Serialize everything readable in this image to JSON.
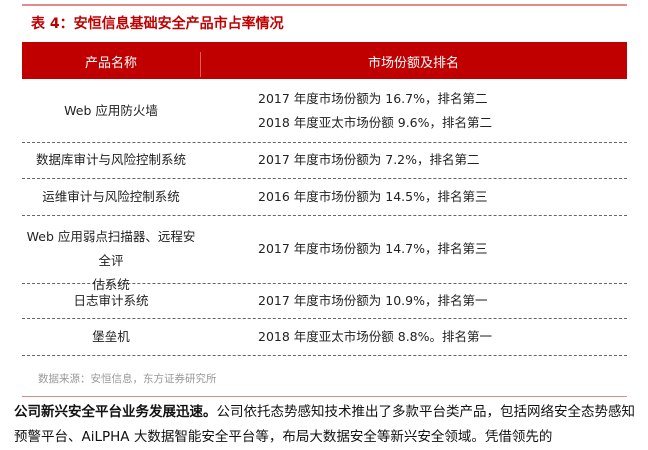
{
  "title": "表 4：安恒信息基础安全产品市占率情况",
  "header": {
    "col1": "产品名称",
    "col2": "市场份额及排名"
  },
  "rows": [
    {
      "name": [
        "Web 应用防火墙"
      ],
      "share": [
        "2017 年度市场份额为 16.7%，排名第二",
        "2018 年度亚太市场份额 9.6%，排名第二"
      ]
    },
    {
      "name": [
        "数据库审计与风险控制系统"
      ],
      "share": [
        "2017 年度市场份额为 7.2%，排名第二"
      ]
    },
    {
      "name": [
        "运维审计与风险控制系统"
      ],
      "share": [
        "2016 年度市场份额为 14.5%，排名第三"
      ]
    },
    {
      "name": [
        "Web 应用弱点扫描器、远程安全评",
        "估系统"
      ],
      "share": [
        "2017 年度市场份额为 14.7%，排名第三"
      ]
    },
    {
      "name": [
        "日志审计系统"
      ],
      "share": [
        "2017 年度市场份额为 10.9%，排名第一"
      ]
    },
    {
      "name": [
        "堡垒机"
      ],
      "share": [
        "2018 年度亚太市场份额 8.8%。排名第一"
      ]
    }
  ],
  "source": "数据来源：安恒信息，东方证券研究所",
  "paragraph": {
    "bold": "公司新兴安全平台业务发展迅速。",
    "text": "公司依托态势感知技术推出了多款平台类产品，包括网络安全态势感知预警平台、AiLPHA 大数据智能安全平台等，布局大数据安全等新兴安全领域。凭借领先的"
  },
  "colors": {
    "accent": "#c00000",
    "rule": "#e58a8a"
  }
}
